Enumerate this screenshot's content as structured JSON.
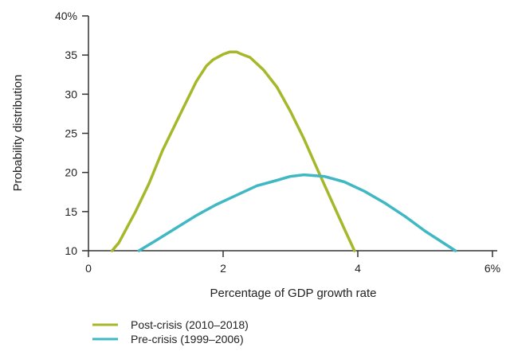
{
  "chart_data": {
    "type": "line",
    "title": "",
    "xlabel": "Percentage of GDP growth rate",
    "ylabel": "Probability distribution",
    "xlim": [
      0,
      6
    ],
    "ylim": [
      10,
      40
    ],
    "x_ticks": [
      {
        "value": 0,
        "label": "0"
      },
      {
        "value": 2,
        "label": "2"
      },
      {
        "value": 4,
        "label": "4"
      },
      {
        "value": 6,
        "label": "6%"
      }
    ],
    "y_ticks": [
      {
        "value": 10,
        "label": "10"
      },
      {
        "value": 15,
        "label": "15"
      },
      {
        "value": 20,
        "label": "20"
      },
      {
        "value": 25,
        "label": "25"
      },
      {
        "value": 30,
        "label": "30"
      },
      {
        "value": 35,
        "label": "35"
      },
      {
        "value": 40,
        "label": "40%"
      }
    ],
    "grid": false,
    "legend_position": "bottom-left",
    "series": [
      {
        "name": "Post-crisis (2010–2018)",
        "color": "#a6b82a",
        "x": [
          0.35,
          0.45,
          0.7,
          0.9,
          1.1,
          1.4,
          1.6,
          1.75,
          1.85,
          2.0,
          2.1,
          2.2,
          2.25,
          2.4,
          2.6,
          2.8,
          3.0,
          3.2,
          3.4,
          3.6,
          3.8,
          3.95
        ],
        "y": [
          10.0,
          11.0,
          15.0,
          18.6,
          22.8,
          28.1,
          31.6,
          33.6,
          34.4,
          35.1,
          35.4,
          35.4,
          35.2,
          34.7,
          33.1,
          30.9,
          27.8,
          24.3,
          20.4,
          16.6,
          12.8,
          10.0
        ]
      },
      {
        "name": "Pre-crisis (1999–2006)",
        "color": "#3fb8c4",
        "x": [
          0.75,
          1.0,
          1.3,
          1.6,
          1.9,
          2.2,
          2.5,
          2.8,
          3.0,
          3.2,
          3.5,
          3.8,
          4.1,
          4.4,
          4.7,
          5.0,
          5.45
        ],
        "y": [
          10.0,
          11.3,
          12.9,
          14.5,
          15.9,
          17.1,
          18.3,
          19.0,
          19.5,
          19.7,
          19.5,
          18.8,
          17.6,
          16.1,
          14.4,
          12.5,
          10.0
        ]
      }
    ]
  }
}
